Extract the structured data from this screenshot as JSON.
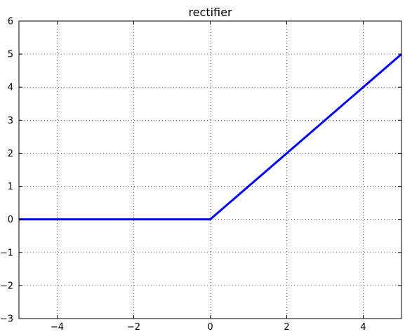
{
  "chart_data": {
    "type": "line",
    "title": "rectifier",
    "xlabel": "",
    "ylabel": "",
    "xlim": [
      -5,
      5
    ],
    "ylim": [
      -3,
      6
    ],
    "grid": true,
    "x_ticks": [
      -4,
      -2,
      0,
      2,
      4
    ],
    "x_tick_labels": [
      "−4",
      "−2",
      "0",
      "2",
      "4"
    ],
    "y_ticks": [
      -3,
      -2,
      -1,
      0,
      1,
      2,
      3,
      4,
      5,
      6
    ],
    "y_tick_labels": [
      "−3",
      "−2",
      "−1",
      "0",
      "1",
      "2",
      "3",
      "4",
      "5",
      "6"
    ],
    "series": [
      {
        "color": "#0000ff",
        "x": [
          -5,
          0,
          5
        ],
        "y": [
          0,
          0,
          5
        ]
      }
    ]
  }
}
